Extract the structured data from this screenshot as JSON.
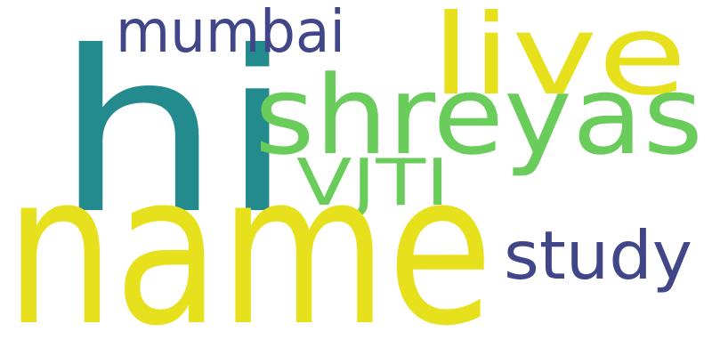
{
  "words": {
    "hi": {
      "text": "hi",
      "color": "#238a8d"
    },
    "name": {
      "text": "name",
      "color": "#e6e11c"
    },
    "shreyas": {
      "text": "shreyas",
      "color": "#6acc5b"
    },
    "live": {
      "text": "live",
      "color": "#e6e11c"
    },
    "mumbai": {
      "text": "mumbai",
      "color": "#404688"
    },
    "vjti": {
      "text": "VJTI",
      "color": "#6acc5b"
    },
    "study": {
      "text": "study",
      "color": "#404688"
    }
  }
}
